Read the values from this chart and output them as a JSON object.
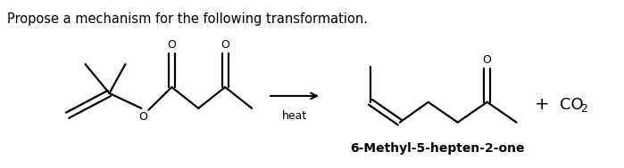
{
  "title_text": "Propose a mechanism for the following transformation.",
  "title_fontsize": 10.5,
  "title_color": "#000000",
  "label_text": "6-Methyl-5-hepten-2-one",
  "label_fontsize": 10,
  "heat_text": "heat",
  "plus_text": "+",
  "co2_main": "CO",
  "co2_sub": "2",
  "background_color": "#ffffff",
  "line_color": "#000000",
  "line_width": 1.6,
  "fig_width": 6.99,
  "fig_height": 1.89,
  "dpi": 100
}
